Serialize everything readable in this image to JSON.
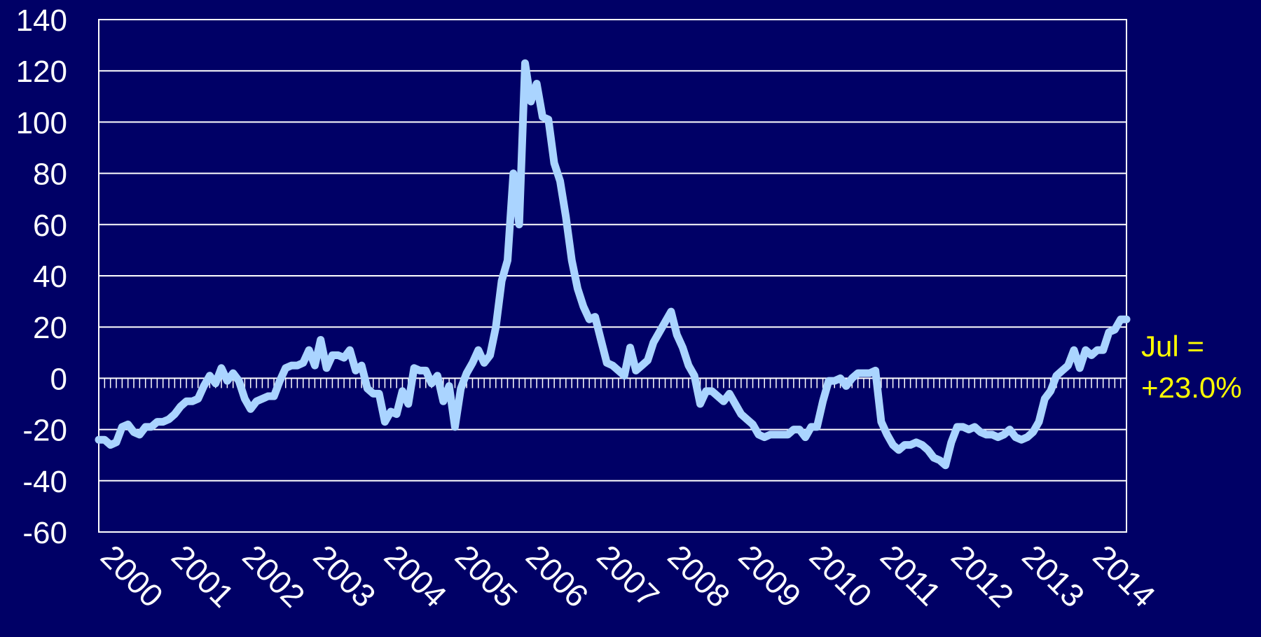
{
  "chart_data": {
    "type": "line",
    "title": "",
    "xlabel": "",
    "ylabel": "",
    "ylim": [
      -60,
      140
    ],
    "yticks": [
      "140",
      "120",
      "100",
      "80",
      "60",
      "40",
      "20",
      "0",
      "-20",
      "-40",
      "-60"
    ],
    "ytick_values": [
      140,
      120,
      100,
      80,
      60,
      40,
      20,
      0,
      -20,
      -40,
      -60
    ],
    "xticks": [
      "2000",
      "2001",
      "2002",
      "2003",
      "2004",
      "2005",
      "2006",
      "2007",
      "2008",
      "2009",
      "2010",
      "2011",
      "2012",
      "2013",
      "2014"
    ],
    "x_start": "2000-01",
    "x_end": "2014-07",
    "grid": true,
    "line_color": "#aad4ff",
    "background_color": "#000066",
    "annotation_color": "#ffff00",
    "annotation": {
      "line1": "Jul =",
      "line2": "+23.0%"
    },
    "series": [
      {
        "values": [
          -24,
          -24,
          -26,
          -25,
          -19,
          -18,
          -21,
          -22,
          -19,
          -19,
          -17,
          -17,
          -16,
          -14,
          -11,
          -9,
          -9,
          -8,
          -3,
          1,
          -2,
          4,
          -1,
          2,
          -1,
          -8,
          -12,
          -9,
          -8,
          -7,
          -7,
          -1,
          4,
          5,
          5,
          6,
          11,
          5,
          15,
          4,
          9,
          9,
          8,
          11,
          3,
          5,
          -4,
          -6,
          -6,
          -17,
          -13,
          -14,
          -5,
          -10,
          4,
          3,
          3,
          -2,
          1,
          -9,
          -3,
          -19,
          -4,
          2,
          6,
          11,
          6,
          9,
          20,
          38,
          46,
          80,
          60,
          123,
          108,
          115,
          102,
          101,
          84,
          77,
          63,
          46,
          35,
          28,
          23,
          24,
          15,
          6,
          5,
          3,
          1,
          12,
          3,
          5,
          7,
          14,
          18,
          22,
          26,
          17,
          12,
          5,
          1,
          -10,
          -5,
          -5,
          -7,
          -9,
          -6,
          -10,
          -14,
          -16,
          -18,
          -22,
          -23,
          -22,
          -22,
          -22,
          -22,
          -20,
          -20,
          -23,
          -19,
          -19,
          -9,
          -1,
          -1,
          0,
          -3,
          0,
          2,
          2,
          2,
          3,
          -17,
          -22,
          -26,
          -28,
          -26,
          -26,
          -25,
          -26,
          -28,
          -31,
          -32,
          -34,
          -25,
          -19,
          -19,
          -20,
          -19,
          -21,
          -22,
          -22,
          -23,
          -22,
          -20,
          -23,
          -24,
          -23,
          -21,
          -17,
          -8,
          -5,
          1,
          3,
          5,
          11,
          4,
          11,
          9,
          11,
          11,
          18,
          19,
          23,
          23
        ]
      }
    ]
  }
}
